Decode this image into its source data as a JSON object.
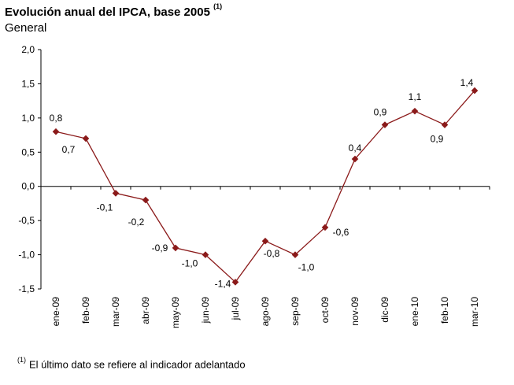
{
  "title": "Evolución anual del IPCA, base 2005",
  "title_note": "(1)",
  "subtitle": "General",
  "footnote_mark": "(1)",
  "footnote": "El último dato se refiere al indicador adelantado",
  "colors": {
    "series": "#8B1A1A",
    "axis": "#000000"
  },
  "chart_data": {
    "type": "line",
    "categories": [
      "ene-09",
      "feb-09",
      "mar-09",
      "abr-09",
      "may-09",
      "jun-09",
      "jul-09",
      "ago-09",
      "sep-09",
      "oct-09",
      "nov-09",
      "dic-09",
      "ene-10",
      "feb-10",
      "mar-10"
    ],
    "series": [
      {
        "values": [
          0.8,
          0.7,
          -0.1,
          -0.2,
          -0.9,
          -1.0,
          -1.4,
          -0.8,
          -1.0,
          -0.6,
          0.4,
          0.9,
          1.1,
          0.9,
          1.4
        ]
      }
    ],
    "data_labels": [
      "0,8",
      "0,7",
      "-0,1",
      "-0,2",
      "-0,9",
      "-1,0",
      "-1,4",
      "-0,8",
      "-1,0",
      "-0,6",
      "0,4",
      "0,9",
      "1,1",
      "0,9",
      "1,4"
    ],
    "yticks": [
      2.0,
      1.5,
      1.0,
      0.5,
      0.0,
      -0.5,
      -1.0,
      -1.5
    ],
    "ytick_labels": [
      "2,0",
      "1,5",
      "1,0",
      "0,5",
      "0,0",
      "-0,5",
      "-1,0",
      "-1,5"
    ],
    "ylim": [
      -1.5,
      2.0
    ],
    "grid": false,
    "legend": "none"
  }
}
